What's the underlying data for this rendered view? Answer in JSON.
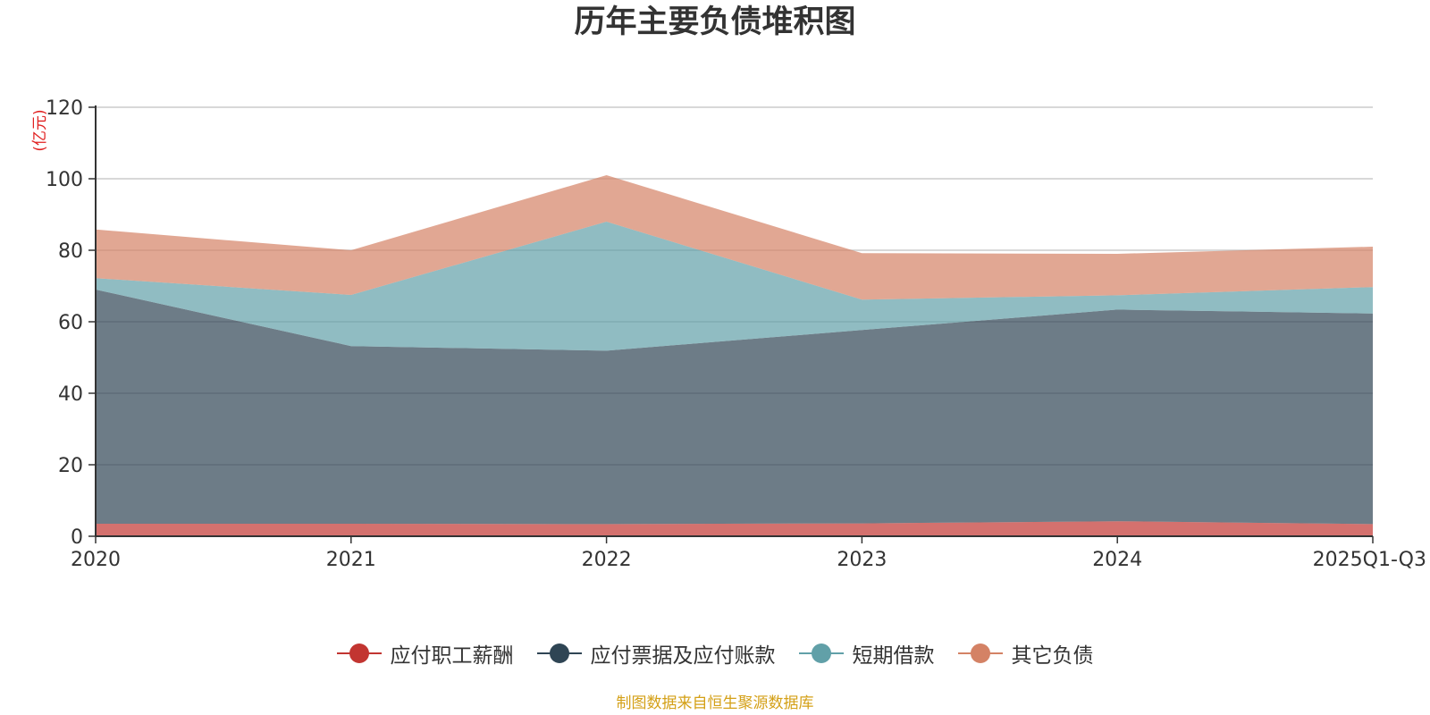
{
  "chart_data": {
    "type": "area",
    "stacked": true,
    "title": "历年主要负债堆积图",
    "ylabel": "(亿元)",
    "xlabel": "",
    "categories": [
      "2020",
      "2021",
      "2022",
      "2023",
      "2024",
      "2025Q1-Q3"
    ],
    "ylim": [
      0,
      120
    ],
    "yticks": [
      0,
      20,
      40,
      60,
      80,
      100,
      120
    ],
    "grid": true,
    "legend_position": "bottom",
    "series": [
      {
        "name": "应付职工薪酬",
        "color": "#c23531",
        "values": [
          3.5,
          3.5,
          3.4,
          3.6,
          4.2,
          3.4
        ]
      },
      {
        "name": "应付票据及应付账款",
        "color": "#2f4554",
        "values": [
          65.5,
          49.7,
          48.5,
          54.1,
          59.2,
          58.9
        ]
      },
      {
        "name": "短期借款",
        "color": "#61a0a8",
        "values": [
          3.2,
          14.3,
          36.1,
          8.5,
          4.0,
          7.4
        ]
      },
      {
        "name": "其它负债",
        "color": "#d48265",
        "values": [
          13.6,
          12.5,
          13.0,
          13.0,
          11.6,
          11.3
        ]
      }
    ]
  },
  "source_note": "制图数据来自恒生聚源数据库"
}
